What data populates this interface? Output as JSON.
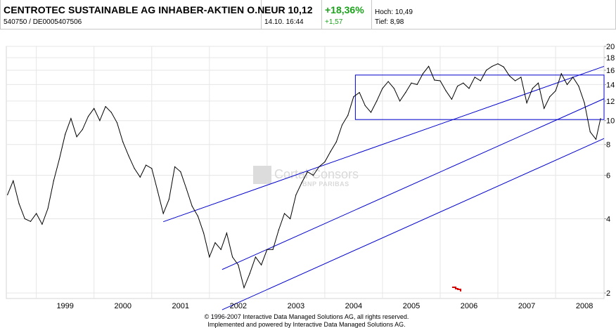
{
  "header": {
    "name": "CENTROTEC SUSTAINABLE AG INHABER-AKTIEN O.N.",
    "ids": "540750  /  DE0005407506",
    "price": "EUR 10,12",
    "time": "14.10. 16:44",
    "change_pct": "+18,36%",
    "change_abs": "+1,57",
    "high": "Hoch: 10,49",
    "low": "Tief: 8,98"
  },
  "watermark": {
    "brand": "Cortal Consors",
    "sub": "BNP PARIBAS"
  },
  "footer": {
    "line1": "© 1996-2007 Interactive Data Managed Solutions AG, all rights reserved.",
    "line2": "Implemented and powered by Interactive Data Managed Solutions AG."
  },
  "colors": {
    "price_line": "#000000",
    "channel": "#0000cc",
    "grid": "#e6e6e6",
    "positive": "#1aa31a",
    "marker": "#dd0000"
  },
  "chart_data": {
    "type": "line",
    "title": "",
    "xlabel": "",
    "ylabel": "",
    "y_scale": "log",
    "grid": true,
    "ylim": [
      1.9,
      20
    ],
    "xlim": [
      1998.48,
      2008.84
    ],
    "y_ticks": [
      2,
      4,
      6,
      8,
      10,
      12,
      14,
      16,
      18,
      20
    ],
    "y_tick_labels": [
      "2",
      "4",
      "6",
      "8",
      "10",
      "12",
      "14",
      "16",
      "18",
      "20"
    ],
    "x_ticks": [
      1999,
      2000,
      2001,
      2002,
      2003,
      2004,
      2005,
      2006,
      2007,
      2008
    ],
    "x_tick_labels": [
      "1999",
      "2000",
      "2001",
      "2002",
      "2003",
      "2004",
      "2005",
      "2006",
      "2007",
      "2008"
    ],
    "series": [
      {
        "x": [
          1998.5,
          1998.6,
          1998.7,
          1998.8,
          1998.9,
          1999.0,
          1999.1,
          1999.2,
          1999.3,
          1999.4,
          1999.5,
          1999.6,
          1999.7,
          1999.8,
          1999.9,
          2000.0,
          2000.1,
          2000.2,
          2000.3,
          2000.4,
          2000.5,
          2000.6,
          2000.7,
          2000.8,
          2000.9,
          2001.0,
          2001.1,
          2001.2,
          2001.3,
          2001.4,
          2001.5,
          2001.6,
          2001.7,
          2001.8,
          2001.9,
          2002.0,
          2002.1,
          2002.2,
          2002.3,
          2002.4,
          2002.5,
          2002.6,
          2002.7,
          2002.8,
          2002.9,
          2003.0,
          2003.1,
          2003.2,
          2003.3,
          2003.4,
          2003.5,
          2003.6,
          2003.7,
          2003.8,
          2003.9,
          2004.0,
          2004.1,
          2004.2,
          2004.3,
          2004.4,
          2004.5,
          2004.6,
          2004.7,
          2004.8,
          2004.9,
          2005.0,
          2005.1,
          2005.2,
          2005.3,
          2005.4,
          2005.5,
          2005.6,
          2005.7,
          2005.8,
          2005.9,
          2006.0,
          2006.1,
          2006.2,
          2006.3,
          2006.4,
          2006.5,
          2006.6,
          2006.7,
          2006.8,
          2006.9,
          2007.0,
          2007.1,
          2007.2,
          2007.3,
          2007.4,
          2007.5,
          2007.6,
          2007.7,
          2007.8,
          2007.9,
          2008.0,
          2008.1,
          2008.2,
          2008.3,
          2008.4,
          2008.5,
          2008.6,
          2008.7,
          2008.78
        ],
        "values": [
          5.0,
          5.7,
          4.6,
          4.0,
          3.9,
          4.2,
          3.8,
          4.4,
          5.7,
          7.0,
          8.8,
          10.2,
          8.6,
          9.2,
          10.4,
          11.2,
          10.0,
          11.4,
          10.8,
          9.8,
          8.2,
          7.2,
          6.4,
          5.9,
          6.6,
          6.4,
          5.2,
          4.2,
          4.8,
          6.5,
          6.2,
          5.3,
          4.5,
          4.1,
          3.5,
          2.8,
          3.2,
          3.0,
          3.5,
          2.8,
          2.6,
          2.1,
          2.4,
          2.8,
          2.6,
          3.0,
          3.0,
          3.6,
          4.2,
          4.0,
          5.0,
          5.6,
          6.2,
          6.0,
          6.5,
          6.8,
          7.5,
          8.2,
          9.6,
          10.5,
          12.5,
          13.0,
          11.5,
          10.8,
          12.0,
          13.5,
          14.4,
          13.5,
          12.0,
          13.0,
          14.2,
          14.0,
          15.5,
          16.6,
          14.6,
          14.5,
          13.2,
          12.2,
          13.8,
          14.2,
          13.5,
          15.0,
          14.5,
          16.0,
          16.6,
          17.0,
          16.5,
          15.2,
          14.5,
          15.0,
          11.8,
          13.5,
          14.2,
          11.2,
          12.5,
          13.2,
          15.5,
          14.0,
          15.0,
          13.8,
          11.8,
          9.0,
          8.4,
          10.2
        ]
      }
    ],
    "annotations": [
      {
        "type": "trendline",
        "x": [
          2001.2,
          2008.84
        ],
        "y": [
          3.89,
          16.6
        ]
      },
      {
        "type": "trendline",
        "x": [
          2002.22,
          2008.84
        ],
        "y": [
          2.49,
          12.27
        ]
      },
      {
        "type": "trendline",
        "x": [
          2002.22,
          2008.84
        ],
        "y": [
          1.71,
          8.46
        ]
      },
      {
        "type": "rectangle",
        "x": [
          2004.53,
          2008.84
        ],
        "y": [
          10.1,
          15.3
        ]
      }
    ]
  }
}
